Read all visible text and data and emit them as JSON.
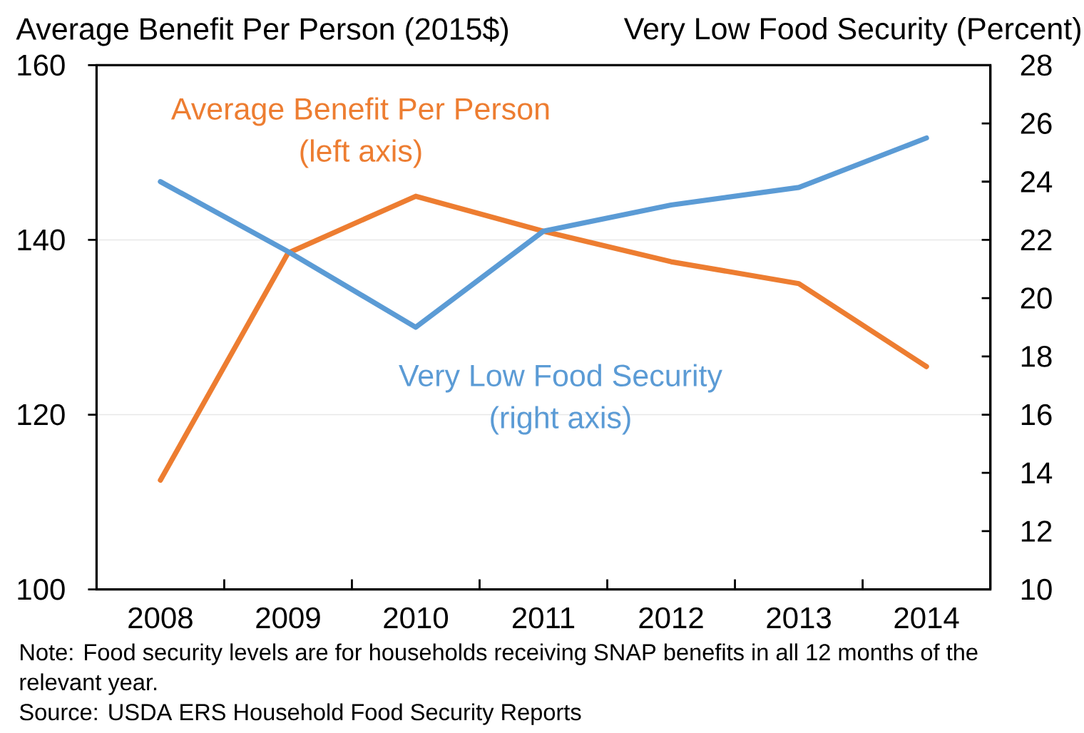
{
  "chart_data": {
    "type": "line",
    "ylabel": "Average Benefit Per Person (2015$)",
    "y2label": "Very Low Food Security (Percent)",
    "categories": [
      "2008",
      "2009",
      "2010",
      "2011",
      "2012",
      "2013",
      "2014"
    ],
    "series": [
      {
        "name": "Average Benefit Per Person (left axis)",
        "color": "#ED7D31",
        "values": [
          112.5,
          138.5,
          145,
          141,
          137.5,
          135,
          125.5
        ]
      },
      {
        "name": "Very Low Food Security (right axis)",
        "color": "#5B9BD5",
        "axis": "y2",
        "values": [
          24.0,
          21.6,
          19.0,
          22.3,
          23.2,
          23.8,
          25.5
        ]
      }
    ],
    "ylim": [
      100,
      160
    ],
    "yticks": [
      100,
      120,
      140,
      160
    ],
    "y2lim": [
      10,
      28
    ],
    "y2ticks": [
      10,
      12,
      14,
      16,
      18,
      20,
      22,
      24,
      26,
      28
    ],
    "grid": "y",
    "legend": false,
    "marker": "none",
    "line_style": "solid",
    "annotations": [
      "Note: Food security levels are for households receiving SNAP benefits in all 12 months of the relevant year.",
      "Source: USDA ERS Household Food Security Reports"
    ]
  }
}
